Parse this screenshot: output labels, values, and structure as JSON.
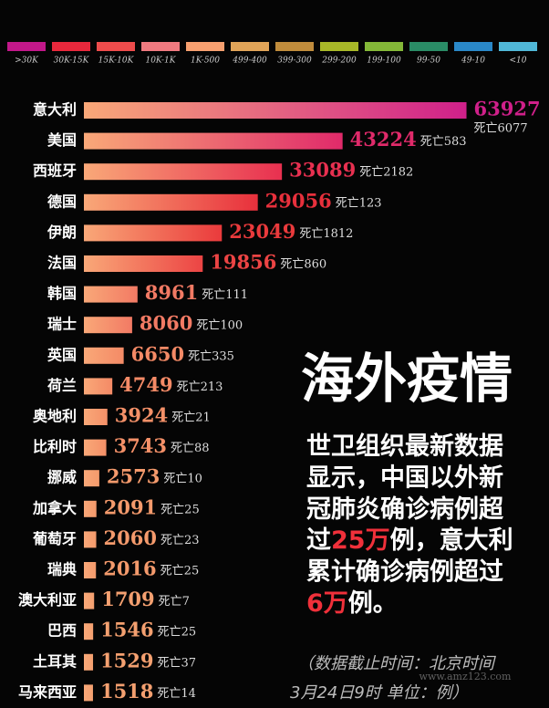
{
  "chart_data": {
    "type": "bar",
    "legend": {
      "labels": [
        ">30K",
        "30K-15K",
        "15K-10K",
        "10K-1K",
        "1K-500",
        "499-400",
        "399-300",
        "299-200",
        "199-100",
        "99-50",
        "49-10",
        "<10"
      ],
      "colors": [
        "#c2188a",
        "#e8283c",
        "#ee4c4c",
        "#f07a80",
        "#f7a070",
        "#e0a458",
        "#c08c3c",
        "#a8b828",
        "#84b838",
        "#2a8c66",
        "#2a88c8",
        "#50b8d8"
      ]
    },
    "categories": [
      "意大利",
      "美国",
      "西班牙",
      "德国",
      "伊朗",
      "法国",
      "韩国",
      "瑞士",
      "英国",
      "荷兰",
      "奥地利",
      "比利时",
      "挪威",
      "加拿大",
      "葡萄牙",
      "瑞典",
      "澳大利亚",
      "巴西",
      "土耳其",
      "马来西亚"
    ],
    "values": [
      63927,
      43224,
      33089,
      29056,
      23049,
      19856,
      8961,
      8060,
      6650,
      4749,
      3924,
      3743,
      2573,
      2091,
      2060,
      2016,
      1709,
      1546,
      1529,
      1518
    ],
    "death_labels": [
      "死亡6077",
      "死亡583",
      "死亡2182",
      "死亡123",
      "死亡1812",
      "死亡860",
      "死亡111",
      "死亡100",
      "死亡335",
      "死亡213",
      "死亡21",
      "死亡88",
      "死亡10",
      "死亡25",
      "死亡23",
      "死亡25",
      "死亡7",
      "死亡25",
      "死亡37",
      "死亡14"
    ],
    "colors": [
      "#d0208a",
      "#e02a6a",
      "#e83050",
      "#e8303c",
      "#ea3a3c",
      "#ec4444",
      "#f27a64",
      "#f27a64",
      "#f48a66",
      "#f48a66",
      "#f49068",
      "#f49068",
      "#f49a6c",
      "#f49a6c",
      "#f49a6c",
      "#f49a6c",
      "#f4a070",
      "#f4a070",
      "#f4a070",
      "#f4a070"
    ],
    "xlim": [
      0,
      64000
    ]
  },
  "headline": "海外疫情",
  "paragraph": [
    [
      {
        "text": "世卫组织最新数据"
      }
    ],
    [
      {
        "text": "显示，中国以外新"
      }
    ],
    [
      {
        "text": "冠肺炎确诊病例超"
      }
    ],
    [
      {
        "text": "过"
      },
      {
        "text": "25万",
        "highlight": true
      },
      {
        "text": "例，意大利"
      }
    ],
    [
      {
        "text": "累计确诊病例超过"
      }
    ],
    [
      {
        "text": "6万",
        "highlight": true
      },
      {
        "text": "例。"
      }
    ]
  ],
  "highlight_color": "#f0303a",
  "footnote": [
    "（数据截止时间：北京时间",
    "3月24日9时  单位：例）"
  ],
  "watermark": "www.amz123.com"
}
